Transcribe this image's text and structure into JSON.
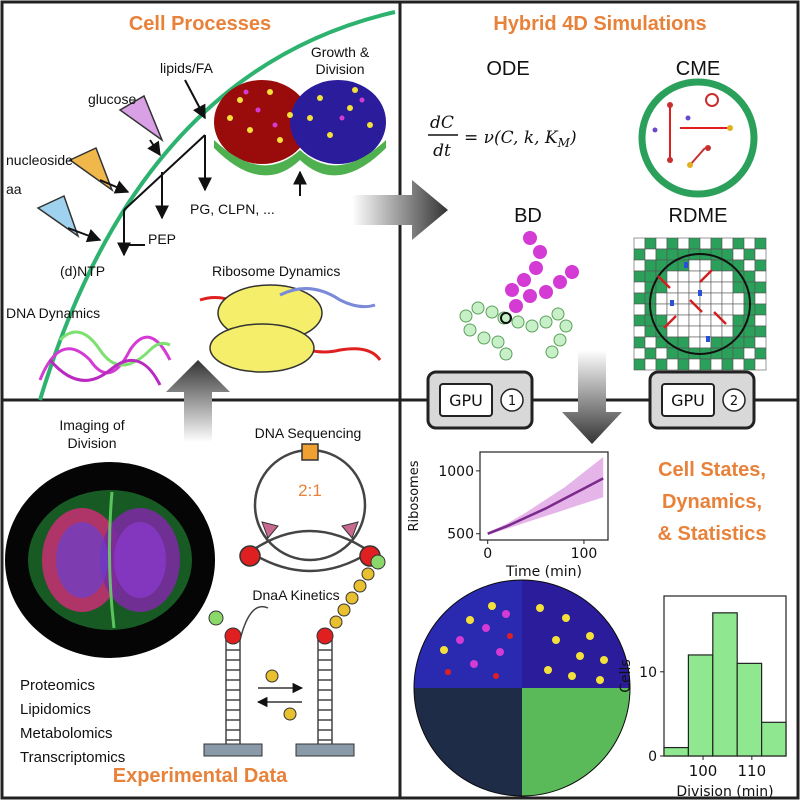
{
  "colors": {
    "accent": "#e8823a",
    "membrane": "#2db36f",
    "chart_line": "#7a2a8a",
    "chart_band": "#e0a8e6",
    "hist_fill": "#8fe88f",
    "grid_green": "#2aa05a",
    "panel_border": "#222222"
  },
  "panels": {
    "cell_processes": {
      "title": "Cell Processes",
      "labels": {
        "lipids": "lipids/FA",
        "glucose": "glucose",
        "nucleoside": "nucleoside",
        "aa": "aa",
        "pep": "PEP",
        "pg": "PG, CLPN, ...",
        "dntp": "(d)NTP",
        "growth_l1": "Growth &",
        "growth_l2": "Division",
        "ribosome": "Ribosome Dynamics",
        "dna_dyn": "DNA Dynamics"
      }
    },
    "hybrid": {
      "title": "Hybrid 4D Simulations",
      "ode": "ODE",
      "cme": "CME",
      "bd": "BD",
      "rdme": "RDME",
      "eq_lhs_num": "dC",
      "eq_lhs_den": "dt",
      "eq_rhs_part1": "= ν(C, k, K",
      "eq_rhs_sub": "M",
      "eq_rhs_close": ")"
    },
    "gpu": {
      "label1": "GPU",
      "num1": "1",
      "label2": "GPU",
      "num2": "2"
    },
    "experimental": {
      "title": "Experimental Data",
      "imaging_l1": "Imaging of",
      "imaging_l2": "Division",
      "dna_seq": "DNA Sequencing",
      "ratio": "2:1",
      "dnaa": "DnaA Kinetics",
      "omics": [
        "Proteomics",
        "Lipidomics",
        "Metabolomics",
        "Transcriptomics"
      ]
    },
    "states": {
      "title_l1": "Cell States,",
      "title_l2": "Dynamics,",
      "title_l3": "& Statistics"
    }
  },
  "chart_data": [
    {
      "type": "line",
      "xlabel": "Time (min)",
      "ylabel": "Ribosomes",
      "x": [
        0,
        20,
        40,
        60,
        80,
        100,
        120
      ],
      "series": [
        {
          "values": [
            500,
            560,
            630,
            700,
            780,
            860,
            940
          ],
          "lower": [
            490,
            540,
            590,
            640,
            690,
            740,
            790
          ],
          "upper": [
            510,
            580,
            670,
            770,
            870,
            990,
            1110
          ]
        }
      ],
      "xticks": [
        0,
        100
      ],
      "yticks": [
        500,
        1000
      ],
      "xlim": [
        -8,
        125
      ],
      "ylim": [
        450,
        1150
      ]
    },
    {
      "type": "bar",
      "xlabel": "Division (min)",
      "ylabel": "Cells",
      "bin_edges": [
        92,
        97,
        102,
        107,
        112,
        117
      ],
      "values": [
        1,
        12,
        17,
        11,
        4
      ],
      "xticks": [
        100,
        110
      ],
      "yticks": [
        0,
        10
      ],
      "xlim": [
        92,
        117
      ],
      "ylim": [
        0,
        19
      ]
    }
  ]
}
